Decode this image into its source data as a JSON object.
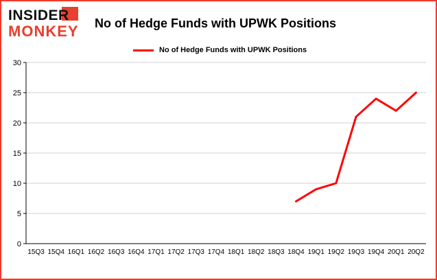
{
  "logo": {
    "line1": "INSIDER",
    "line2": "MONKEY"
  },
  "title": "No of Hedge Funds with UPWK Positions",
  "legend": {
    "label": "No of Hedge Funds with UPWK Positions"
  },
  "colors": {
    "line": "#ff0000",
    "border": "#f3392c",
    "logo_red": "#e8402f",
    "grid": "#d0d0d0",
    "axis": "#000000"
  },
  "chart_data": {
    "type": "line",
    "title": "No of Hedge Funds with UPWK Positions",
    "categories": [
      "15Q3",
      "15Q4",
      "16Q1",
      "16Q2",
      "16Q3",
      "16Q4",
      "17Q1",
      "17Q2",
      "17Q3",
      "17Q4",
      "18Q1",
      "18Q2",
      "18Q3",
      "18Q4",
      "19Q1",
      "19Q2",
      "19Q3",
      "19Q4",
      "20Q1",
      "20Q2"
    ],
    "series": [
      {
        "name": "No of Hedge Funds with UPWK Positions",
        "values": [
          null,
          null,
          null,
          null,
          null,
          null,
          null,
          null,
          null,
          null,
          null,
          null,
          null,
          7,
          9,
          10,
          21,
          24,
          22,
          25
        ]
      }
    ],
    "xlabel": "",
    "ylabel": "",
    "ylim": [
      0,
      30
    ],
    "ytick_step": 5,
    "ytick_labels": [
      "0",
      "5",
      "10",
      "15",
      "20",
      "25",
      "30"
    ],
    "grid": "horizontal",
    "legend_position": "top-left"
  }
}
